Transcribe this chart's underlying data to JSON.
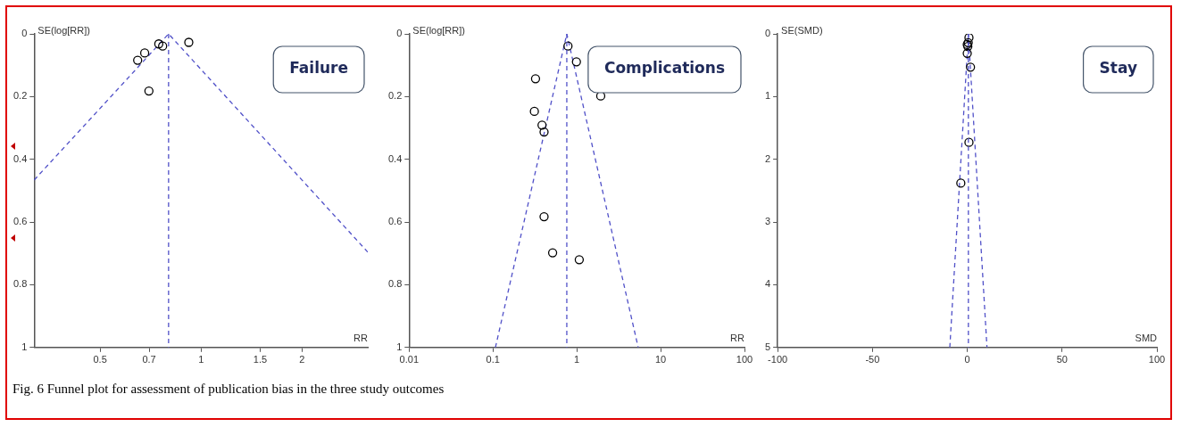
{
  "chart_data": [
    {
      "type": "scatter",
      "ylabel": "SE(log[RR])",
      "xlabel": "RR",
      "log": "x",
      "xlim": [
        0.318,
        3.14
      ],
      "xticks": [
        0.5,
        0.7,
        1,
        1.5,
        2
      ],
      "ylim": [
        1,
        0
      ],
      "yticks": [
        0,
        0.2,
        0.4,
        0.6,
        0.8,
        1
      ],
      "grid": false,
      "legend": false,
      "marker": "circle",
      "series": [
        {
          "color": "#000000",
          "x": [
            0.647,
            0.679,
            0.748,
            0.768,
            0.919,
            0.699
          ],
          "values": [
            0.084,
            0.061,
            0.032,
            0.039,
            0.027,
            0.182
          ]
        },
        {
          "type": "line",
          "color": "#5050c8",
          "line_style": "dashed",
          "marker": "none",
          "x": [
            0.318,
            0.8,
            3.14
          ],
          "values": [
            0.466,
            0,
            0.696
          ]
        }
      ],
      "ref_lines": [
        {
          "axis": "x",
          "value": 0.8,
          "color": "#5050c8",
          "line_style": "dashed"
        }
      ],
      "annotations": [
        "Failure",
        "Fig. 6  Funnel plot for assessment of publication bias in the three study outcomes"
      ]
    },
    {
      "type": "scatter",
      "ylabel": "SE(log[RR])",
      "xlabel": "RR",
      "log": "x",
      "xlim": [
        0.01,
        100
      ],
      "xticks": [
        0.01,
        0.1,
        1,
        10,
        100
      ],
      "ylim": [
        1,
        0
      ],
      "yticks": [
        0,
        0.2,
        0.4,
        0.6,
        0.8,
        1
      ],
      "grid": false,
      "legend": false,
      "marker": "circle",
      "series": [
        {
          "color": "#000000",
          "x": [
            0.785,
            0.99,
            0.322,
            1.93,
            0.312,
            0.385,
            0.407,
            0.407,
            0.515,
            1.07
          ],
          "values": [
            0.039,
            0.089,
            0.143,
            0.198,
            0.247,
            0.291,
            0.313,
            0.583,
            0.698,
            0.72
          ]
        },
        {
          "type": "line",
          "color": "#5050c8",
          "line_style": "dashed",
          "marker": "none",
          "x": [
            0.107,
            0.76,
            5.4
          ],
          "values": [
            1,
            0,
            1
          ]
        }
      ],
      "ref_lines": [
        {
          "axis": "x",
          "value": 0.76,
          "color": "#5050c8",
          "line_style": "dashed"
        }
      ],
      "annotations": [
        "Complications"
      ]
    },
    {
      "type": "scatter",
      "ylabel": "SE(SMD)",
      "xlabel": "SMD",
      "xlim": [
        -100,
        100
      ],
      "xticks": [
        -100,
        -50,
        0,
        50,
        100
      ],
      "ylim": [
        5,
        0
      ],
      "yticks": [
        0,
        1,
        2,
        3,
        4,
        5
      ],
      "grid": false,
      "legend": false,
      "marker": "circle",
      "series": [
        {
          "color": "#000000",
          "x": [
            0.9,
            0.5,
            0,
            0.3,
            0,
            1.7,
            0.9,
            -3.4
          ],
          "values": [
            0.06,
            0.14,
            0.17,
            0.2,
            0.31,
            0.53,
            1.73,
            2.38
          ]
        },
        {
          "type": "line",
          "color": "#5050c8",
          "line_style": "dashed",
          "marker": "none",
          "x": [
            -9.2,
            0.6,
            10.4
          ],
          "values": [
            5,
            0,
            5
          ]
        }
      ],
      "ref_lines": [
        {
          "axis": "x",
          "value": 0.6,
          "color": "#5050c8",
          "line_style": "dashed"
        }
      ],
      "annotations": [
        "Stay"
      ]
    }
  ]
}
